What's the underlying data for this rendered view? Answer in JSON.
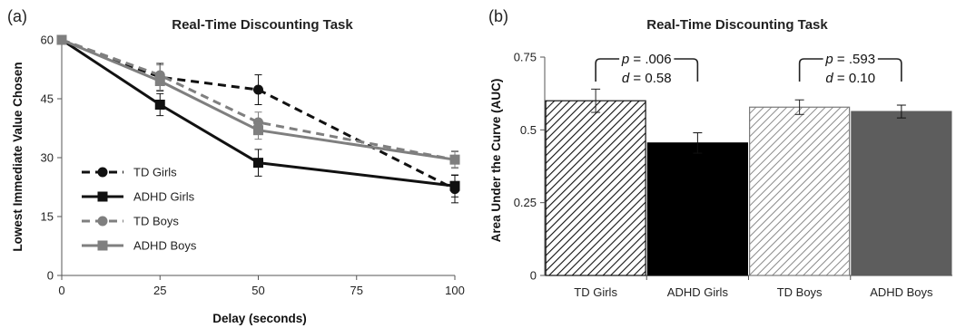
{
  "chart_data": [
    {
      "panel_label": "(a)",
      "type": "line",
      "title": "Real-Time Discounting Task",
      "xlabel": "Delay (seconds)",
      "ylabel": "Lowest Immediate Value Chosen",
      "xlim": [
        0,
        100
      ],
      "ylim": [
        0,
        60
      ],
      "xticks": [
        "0",
        "25",
        "50",
        "75",
        "100"
      ],
      "yticks": [
        "0",
        "15",
        "30",
        "45",
        "60"
      ],
      "x": [
        0,
        25,
        50,
        100
      ],
      "grid": false,
      "legend_position": "bottom-left",
      "series": [
        {
          "name": "TD Girls",
          "values": [
            60,
            50.5,
            47.3,
            22.0
          ],
          "errors": [
            0,
            3.5,
            3.8,
            3.5
          ],
          "color": "#111111",
          "dash": "dashed",
          "marker": "circle"
        },
        {
          "name": "ADHD Girls",
          "values": [
            60,
            43.5,
            28.7,
            22.8
          ],
          "errors": [
            0,
            2.8,
            3.4,
            2.8
          ],
          "color": "#111111",
          "dash": "solid",
          "marker": "square"
        },
        {
          "name": "TD Boys",
          "values": [
            60,
            51.0,
            39.0,
            29.5
          ],
          "errors": [
            0,
            2.6,
            2.6,
            2.2
          ],
          "color": "#7f7f7f",
          "dash": "dashed",
          "marker": "circle"
        },
        {
          "name": "ADHD Boys",
          "values": [
            60,
            49.5,
            37.0,
            29.5
          ],
          "errors": [
            0,
            2.3,
            2.3,
            2.0
          ],
          "color": "#7f7f7f",
          "dash": "solid",
          "marker": "square"
        }
      ]
    },
    {
      "panel_label": "(b)",
      "type": "bar",
      "title": "Real-Time Discounting Task",
      "xlabel": "",
      "ylabel": "Area Under the Curve (AUC)",
      "ylim": [
        0,
        0.75
      ],
      "yticks": [
        "0",
        "0.25",
        "0.5",
        "0.75"
      ],
      "categories": [
        "TD Girls",
        "ADHD Girls",
        "TD Boys",
        "ADHD Boys"
      ],
      "values": [
        0.6,
        0.455,
        0.578,
        0.563
      ],
      "errors": [
        0.04,
        0.035,
        0.025,
        0.022
      ],
      "fills": [
        "hatch-dark",
        "solid-black",
        "hatch-light",
        "solid-gray"
      ],
      "annotations": [
        {
          "bars": [
            0,
            1
          ],
          "p_label": "p",
          "p_value": " = .006",
          "d_label": "d",
          "d_value": " = 0.58"
        },
        {
          "bars": [
            2,
            3
          ],
          "p_label": "p",
          "p_value": " = .593",
          "d_label": "d",
          "d_value": " = 0.10"
        }
      ]
    }
  ]
}
